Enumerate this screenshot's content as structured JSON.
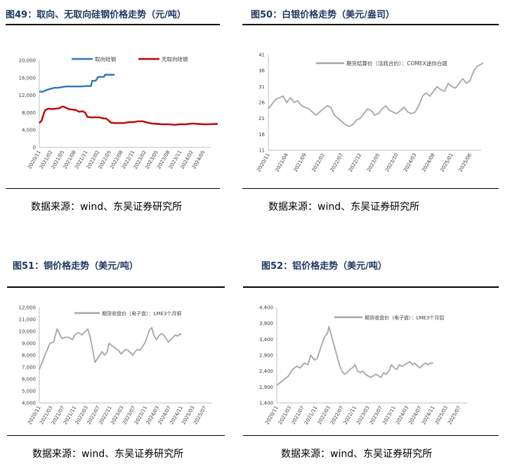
{
  "panels": [
    {
      "figure_title": "图49：取向、无取向硅钢价格走势（元/吨）",
      "source": "数据来源：wind、东吴证券研究所"
    },
    {
      "figure_title": "图50：白银价格走势（美元/盎司）",
      "source": "数据来源：wind、东吴证券研究所"
    },
    {
      "figure_title": "图51：铜价格走势（美元/吨）",
      "source": "数据来源：wind、东吴证券研究所"
    },
    {
      "figure_title": "图52：铝价格走势（美元/吨）",
      "source": "数据来源：wind、东吴证券研究所"
    }
  ],
  "chart_data": [
    {
      "type": "line",
      "title": "",
      "xlabel": "",
      "ylabel": "",
      "ylim": [
        0,
        20000
      ],
      "yticks": [
        "20,000",
        "16,000",
        "12,000",
        "8,000",
        "4,000",
        "0"
      ],
      "xticks": [
        "2020/11",
        "2021/02",
        "2021/05",
        "2021/08",
        "2021/11",
        "2022/02",
        "2022/05",
        "2022/08",
        "2022/11",
        "2023/02",
        "2023/05",
        "2023/08",
        "2023/11",
        "2024/02",
        "2024/05"
      ],
      "legend": "top",
      "series": [
        {
          "name": "取向硅钢",
          "color": "#2e75b6",
          "points": [
            [
              0,
              12800
            ],
            [
              0.3,
              12800
            ],
            [
              0.6,
              13200
            ],
            [
              1,
              13500
            ],
            [
              1.3,
              13700
            ],
            [
              1.6,
              13700
            ],
            [
              2,
              13900
            ],
            [
              2.3,
              14000
            ],
            [
              2.6,
              14000
            ],
            [
              3,
              14000
            ],
            [
              3.3,
              14000
            ],
            [
              3.6,
              14000
            ],
            [
              4,
              14100
            ],
            [
              4.2,
              14100
            ],
            [
              4.4,
              14100
            ],
            [
              4.5,
              15300
            ],
            [
              4.8,
              15300
            ],
            [
              5,
              16200
            ],
            [
              5.3,
              16200
            ],
            [
              5.5,
              16200
            ],
            [
              5.6,
              16700
            ],
            [
              5.9,
              16700
            ],
            [
              6.2,
              16700
            ],
            [
              6.4,
              16700
            ]
          ]
        },
        {
          "name": "无取向硅钢",
          "color": "#c00000",
          "points": [
            [
              0,
              5600
            ],
            [
              0.2,
              6200
            ],
            [
              0.35,
              7500
            ],
            [
              0.5,
              8600
            ],
            [
              0.8,
              8900
            ],
            [
              1.1,
              8800
            ],
            [
              1.4,
              8900
            ],
            [
              1.7,
              9000
            ],
            [
              2,
              9400
            ],
            [
              2.2,
              9200
            ],
            [
              2.5,
              8800
            ],
            [
              2.8,
              8700
            ],
            [
              3.1,
              8600
            ],
            [
              3.4,
              8200
            ],
            [
              3.7,
              8300
            ],
            [
              3.9,
              8000
            ],
            [
              4.1,
              7000
            ],
            [
              4.4,
              6900
            ],
            [
              4.8,
              6900
            ],
            [
              5.1,
              6900
            ],
            [
              5.4,
              6700
            ],
            [
              5.7,
              6600
            ],
            [
              5.9,
              6200
            ],
            [
              6.1,
              5700
            ],
            [
              6.4,
              5600
            ],
            [
              6.8,
              5600
            ],
            [
              7.2,
              5600
            ],
            [
              7.6,
              5800
            ],
            [
              8,
              5800
            ],
            [
              8.4,
              6000
            ],
            [
              8.8,
              6000
            ],
            [
              9.2,
              5700
            ],
            [
              9.6,
              5500
            ],
            [
              10,
              5400
            ],
            [
              10.5,
              5300
            ],
            [
              11,
              5300
            ],
            [
              11.5,
              5200
            ],
            [
              12,
              5300
            ],
            [
              12.5,
              5300
            ],
            [
              13,
              5500
            ],
            [
              13.5,
              5400
            ],
            [
              14,
              5300
            ],
            [
              14.5,
              5300
            ],
            [
              15,
              5400
            ],
            [
              15.2,
              5400
            ]
          ]
        }
      ]
    },
    {
      "type": "line",
      "title": "",
      "xlabel": "",
      "ylabel": "",
      "ylim": [
        11,
        41
      ],
      "yticks": [
        "41",
        "36",
        "31",
        "26",
        "21",
        "16",
        "11"
      ],
      "xticks": [
        "2020/11",
        "2021/04",
        "2021/09",
        "2022/02",
        "2022/07",
        "2022/12",
        "2023/05",
        "2023/10",
        "2024/03",
        "2024/08",
        "2025/01",
        "2025/06"
      ],
      "legend": "top",
      "series": [
        {
          "name": "期货结算价（活跃合约）：COMEX迷你白银",
          "color": "#a6a6a6",
          "points": [
            [
              0,
              24
            ],
            [
              0.2,
              25.5
            ],
            [
              0.4,
              27
            ],
            [
              0.6,
              27.5
            ],
            [
              0.8,
              28
            ],
            [
              1,
              26
            ],
            [
              1.2,
              27.5
            ],
            [
              1.4,
              26
            ],
            [
              1.6,
              26.5
            ],
            [
              1.8,
              25
            ],
            [
              2,
              24.5
            ],
            [
              2.2,
              24
            ],
            [
              2.4,
              23
            ],
            [
              2.6,
              22
            ],
            [
              2.8,
              23
            ],
            [
              3,
              24
            ],
            [
              3.2,
              25
            ],
            [
              3.4,
              24.5
            ],
            [
              3.6,
              22
            ],
            [
              3.8,
              21
            ],
            [
              4,
              20
            ],
            [
              4.2,
              19
            ],
            [
              4.4,
              18.5
            ],
            [
              4.6,
              19
            ],
            [
              4.8,
              20.5
            ],
            [
              5,
              21
            ],
            [
              5.2,
              22.5
            ],
            [
              5.4,
              24
            ],
            [
              5.6,
              23.5
            ],
            [
              5.8,
              22
            ],
            [
              6,
              22.5
            ],
            [
              6.2,
              24
            ],
            [
              6.4,
              25
            ],
            [
              6.6,
              23.5
            ],
            [
              6.8,
              23
            ],
            [
              7,
              22.5
            ],
            [
              7.2,
              23.5
            ],
            [
              7.4,
              24.5
            ],
            [
              7.6,
              23
            ],
            [
              7.8,
              22.5
            ],
            [
              8,
              23
            ],
            [
              8.2,
              25
            ],
            [
              8.4,
              28
            ],
            [
              8.6,
              29
            ],
            [
              8.8,
              28
            ],
            [
              9,
              29.5
            ],
            [
              9.2,
              31
            ],
            [
              9.4,
              30
            ],
            [
              9.6,
              29.5
            ],
            [
              9.8,
              32
            ],
            [
              10,
              31
            ],
            [
              10.2,
              30.5
            ],
            [
              10.4,
              32
            ],
            [
              10.6,
              33.5
            ],
            [
              10.8,
              32
            ],
            [
              11,
              33
            ],
            [
              11.2,
              36
            ],
            [
              11.4,
              37.5
            ],
            [
              11.6,
              38
            ],
            [
              11.7,
              38.5
            ]
          ]
        }
      ]
    },
    {
      "type": "line",
      "title": "",
      "xlabel": "",
      "ylabel": "",
      "ylim": [
        4000,
        12000
      ],
      "yticks": [
        "12,000",
        "11,000",
        "10,000",
        "9,000",
        "8,000",
        "7,000",
        "6,000",
        "5,000",
        "4,000"
      ],
      "xticks": [
        "2020/11",
        "2021/03",
        "2021/07",
        "2021/11",
        "2022/03",
        "2022/07",
        "2022/11",
        "2023/03",
        "2023/07",
        "2023/11",
        "2024/03",
        "2024/07",
        "2024/11",
        "2025/03",
        "2025/07"
      ],
      "legend": "top",
      "series": [
        {
          "name": "期货收盘价（电子盘）：LME3个月铜",
          "color": "#a6a6a6",
          "points": [
            [
              0,
              6800
            ],
            [
              0.3,
              7600
            ],
            [
              0.6,
              8300
            ],
            [
              0.9,
              9000
            ],
            [
              1.2,
              9100
            ],
            [
              1.5,
              10200
            ],
            [
              1.7,
              9800
            ],
            [
              1.9,
              9400
            ],
            [
              2.2,
              9500
            ],
            [
              2.5,
              9500
            ],
            [
              2.8,
              9300
            ],
            [
              3,
              9700
            ],
            [
              3.3,
              9900
            ],
            [
              3.6,
              9700
            ],
            [
              3.9,
              10000
            ],
            [
              4.1,
              10200
            ],
            [
              4.3,
              9500
            ],
            [
              4.5,
              8500
            ],
            [
              4.7,
              7400
            ],
            [
              4.9,
              7700
            ],
            [
              5.1,
              8000
            ],
            [
              5.3,
              8300
            ],
            [
              5.5,
              8000
            ],
            [
              5.7,
              8200
            ],
            [
              5.9,
              9000
            ],
            [
              6.1,
              8800
            ],
            [
              6.3,
              8700
            ],
            [
              6.5,
              8500
            ],
            [
              6.7,
              8400
            ],
            [
              6.9,
              8100
            ],
            [
              7.1,
              8300
            ],
            [
              7.3,
              8500
            ],
            [
              7.5,
              8400
            ],
            [
              7.7,
              8200
            ],
            [
              7.9,
              8000
            ],
            [
              8.1,
              8300
            ],
            [
              8.3,
              8500
            ],
            [
              8.5,
              8400
            ],
            [
              8.7,
              8700
            ],
            [
              8.9,
              9000
            ],
            [
              9.1,
              9500
            ],
            [
              9.3,
              10100
            ],
            [
              9.5,
              10300
            ],
            [
              9.7,
              9600
            ],
            [
              9.9,
              9300
            ],
            [
              10.1,
              9600
            ],
            [
              10.3,
              9800
            ],
            [
              10.5,
              9700
            ],
            [
              10.7,
              9400
            ],
            [
              10.9,
              9100
            ],
            [
              11.1,
              9300
            ],
            [
              11.3,
              9500
            ],
            [
              11.5,
              9700
            ],
            [
              11.7,
              9600
            ],
            [
              11.9,
              9800
            ],
            [
              12,
              9700
            ]
          ]
        }
      ]
    },
    {
      "type": "line",
      "title": "",
      "xlabel": "",
      "ylabel": "",
      "ylim": [
        1400,
        4400
      ],
      "yticks": [
        "4,400",
        "3,900",
        "3,400",
        "2,900",
        "2,400",
        "1,900",
        "1,400"
      ],
      "xticks": [
        "2020/11",
        "2021/03",
        "2021/07",
        "2021/11",
        "2022/03",
        "2022/07",
        "2022/11",
        "2023/03",
        "2023/07",
        "2023/11",
        "2024/03",
        "2024/07",
        "2024/11",
        "2025/03",
        "2025/07"
      ],
      "legend": "top",
      "series": [
        {
          "name": "期货收盘价（电子盘）：LME3个月铝",
          "color": "#a6a6a6",
          "points": [
            [
              0,
              1950
            ],
            [
              0.3,
              2050
            ],
            [
              0.6,
              2150
            ],
            [
              0.9,
              2250
            ],
            [
              1.2,
              2450
            ],
            [
              1.5,
              2550
            ],
            [
              1.8,
              2500
            ],
            [
              2.1,
              2650
            ],
            [
              2.4,
              2600
            ],
            [
              2.6,
              2900
            ],
            [
              2.9,
              2750
            ],
            [
              3.1,
              2800
            ],
            [
              3.3,
              3050
            ],
            [
              3.5,
              3300
            ],
            [
              3.7,
              3500
            ],
            [
              3.9,
              3600
            ],
            [
              4,
              3800
            ],
            [
              4.2,
              3500
            ],
            [
              4.4,
              3200
            ],
            [
              4.6,
              2900
            ],
            [
              4.8,
              2600
            ],
            [
              5,
              2400
            ],
            [
              5.2,
              2300
            ],
            [
              5.4,
              2350
            ],
            [
              5.6,
              2450
            ],
            [
              5.8,
              2500
            ],
            [
              6,
              2600
            ],
            [
              6.2,
              2400
            ],
            [
              6.4,
              2350
            ],
            [
              6.6,
              2400
            ],
            [
              6.8,
              2300
            ],
            [
              7,
              2250
            ],
            [
              7.2,
              2200
            ],
            [
              7.4,
              2250
            ],
            [
              7.6,
              2300
            ],
            [
              7.8,
              2250
            ],
            [
              8,
              2200
            ],
            [
              8.2,
              2350
            ],
            [
              8.4,
              2300
            ],
            [
              8.6,
              2400
            ],
            [
              8.8,
              2600
            ],
            [
              9,
              2500
            ],
            [
              9.2,
              2450
            ],
            [
              9.4,
              2600
            ],
            [
              9.6,
              2550
            ],
            [
              9.8,
              2600
            ],
            [
              10,
              2650
            ],
            [
              10.2,
              2700
            ],
            [
              10.4,
              2600
            ],
            [
              10.6,
              2650
            ],
            [
              10.8,
              2550
            ],
            [
              11,
              2500
            ],
            [
              11.2,
              2600
            ],
            [
              11.4,
              2650
            ],
            [
              11.6,
              2600
            ],
            [
              11.8,
              2650
            ],
            [
              12,
              2650
            ]
          ]
        }
      ]
    }
  ]
}
